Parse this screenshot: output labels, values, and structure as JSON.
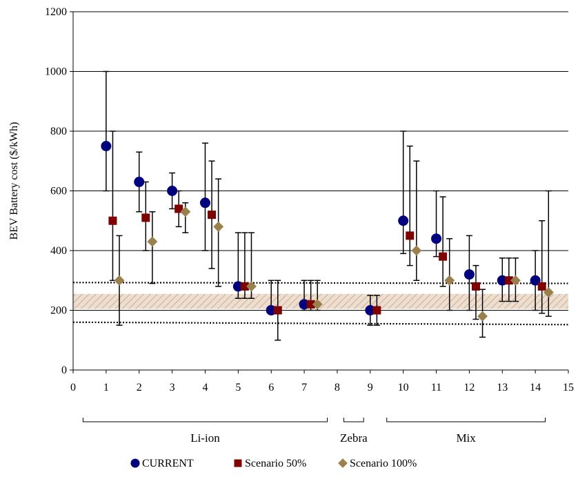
{
  "chart_data": {
    "type": "scatter",
    "title": "",
    "xlabel": "",
    "ylabel": "BEV Battery cost ($/kWh)",
    "xlim": [
      0,
      15
    ],
    "ylim": [
      0,
      1200
    ],
    "x_ticks": [
      0,
      1,
      2,
      3,
      4,
      5,
      6,
      7,
      8,
      9,
      10,
      11,
      12,
      13,
      14,
      15
    ],
    "y_ticks": [
      0,
      200,
      400,
      600,
      800,
      1000,
      1200
    ],
    "grid": "horizontal",
    "legend_position": "bottom",
    "groups": [
      {
        "label": "Li-ion",
        "x_range": [
          0.3,
          7.7
        ]
      },
      {
        "label": "Zebra",
        "x_range": [
          8.2,
          8.8
        ]
      },
      {
        "label": "Mix",
        "x_range": [
          9.5,
          14.3
        ]
      }
    ],
    "reference_band": {
      "y_low": 205,
      "y_high": 255,
      "color": "#e8d4c4"
    },
    "reference_lines": [
      {
        "y_start": 293,
        "y_end": 290
      },
      {
        "y_start": 160,
        "y_end": 152
      }
    ],
    "series": [
      {
        "name": "CURRENT",
        "marker": "circle",
        "color": "#00007f",
        "points": [
          {
            "x": 1,
            "y": 750,
            "low": 600,
            "high": 1000
          },
          {
            "x": 2,
            "y": 630,
            "low": 530,
            "high": 730
          },
          {
            "x": 3,
            "y": 600,
            "low": 540,
            "high": 660
          },
          {
            "x": 4,
            "y": 560,
            "low": 400,
            "high": 760
          },
          {
            "x": 5,
            "y": 280,
            "low": 240,
            "high": 460
          },
          {
            "x": 6,
            "y": 200,
            "low": 200,
            "high": 300
          },
          {
            "x": 7,
            "y": 220,
            "low": 200,
            "high": 300
          },
          {
            "x": 9,
            "y": 200,
            "low": 150,
            "high": 250
          },
          {
            "x": 10,
            "y": 500,
            "low": 390,
            "high": 800
          },
          {
            "x": 11,
            "y": 440,
            "low": 380,
            "high": 600
          },
          {
            "x": 12,
            "y": 320,
            "low": 200,
            "high": 450
          },
          {
            "x": 13,
            "y": 300,
            "low": 230,
            "high": 375
          },
          {
            "x": 14,
            "y": 300,
            "low": 200,
            "high": 400
          }
        ]
      },
      {
        "name": "Scenario 50%",
        "marker": "square",
        "color": "#7f0000",
        "points": [
          {
            "x": 1.2,
            "y": 500,
            "low": 300,
            "high": 800
          },
          {
            "x": 2.2,
            "y": 510,
            "low": 400,
            "high": 630
          },
          {
            "x": 3.2,
            "y": 540,
            "low": 480,
            "high": 600
          },
          {
            "x": 4.2,
            "y": 520,
            "low": 340,
            "high": 700
          },
          {
            "x": 5.2,
            "y": 280,
            "low": 240,
            "high": 460
          },
          {
            "x": 6.2,
            "y": 200,
            "low": 100,
            "high": 300
          },
          {
            "x": 7.2,
            "y": 220,
            "low": 200,
            "high": 300
          },
          {
            "x": 9.2,
            "y": 200,
            "low": 150,
            "high": 250
          },
          {
            "x": 10.2,
            "y": 450,
            "low": 350,
            "high": 750
          },
          {
            "x": 11.2,
            "y": 380,
            "low": 280,
            "high": 580
          },
          {
            "x": 12.2,
            "y": 280,
            "low": 170,
            "high": 350
          },
          {
            "x": 13.2,
            "y": 300,
            "low": 230,
            "high": 375
          },
          {
            "x": 14.2,
            "y": 280,
            "low": 190,
            "high": 500
          }
        ]
      },
      {
        "name": "Scenario 100%",
        "marker": "diamond",
        "color": "#99804d",
        "points": [
          {
            "x": 1.4,
            "y": 300,
            "low": 150,
            "high": 450
          },
          {
            "x": 2.4,
            "y": 430,
            "low": 290,
            "high": 530
          },
          {
            "x": 3.4,
            "y": 530,
            "low": 460,
            "high": 560
          },
          {
            "x": 4.4,
            "y": 480,
            "low": 280,
            "high": 640
          },
          {
            "x": 5.4,
            "y": 280,
            "low": 240,
            "high": 460
          },
          {
            "x": 7.4,
            "y": 220,
            "low": 200,
            "high": 300
          },
          {
            "x": 10.4,
            "y": 400,
            "low": 300,
            "high": 700
          },
          {
            "x": 11.4,
            "y": 300,
            "low": 200,
            "high": 440
          },
          {
            "x": 12.4,
            "y": 180,
            "low": 110,
            "high": 270
          },
          {
            "x": 13.4,
            "y": 300,
            "low": 230,
            "high": 375
          },
          {
            "x": 14.4,
            "y": 260,
            "low": 180,
            "high": 600
          }
        ]
      }
    ]
  }
}
